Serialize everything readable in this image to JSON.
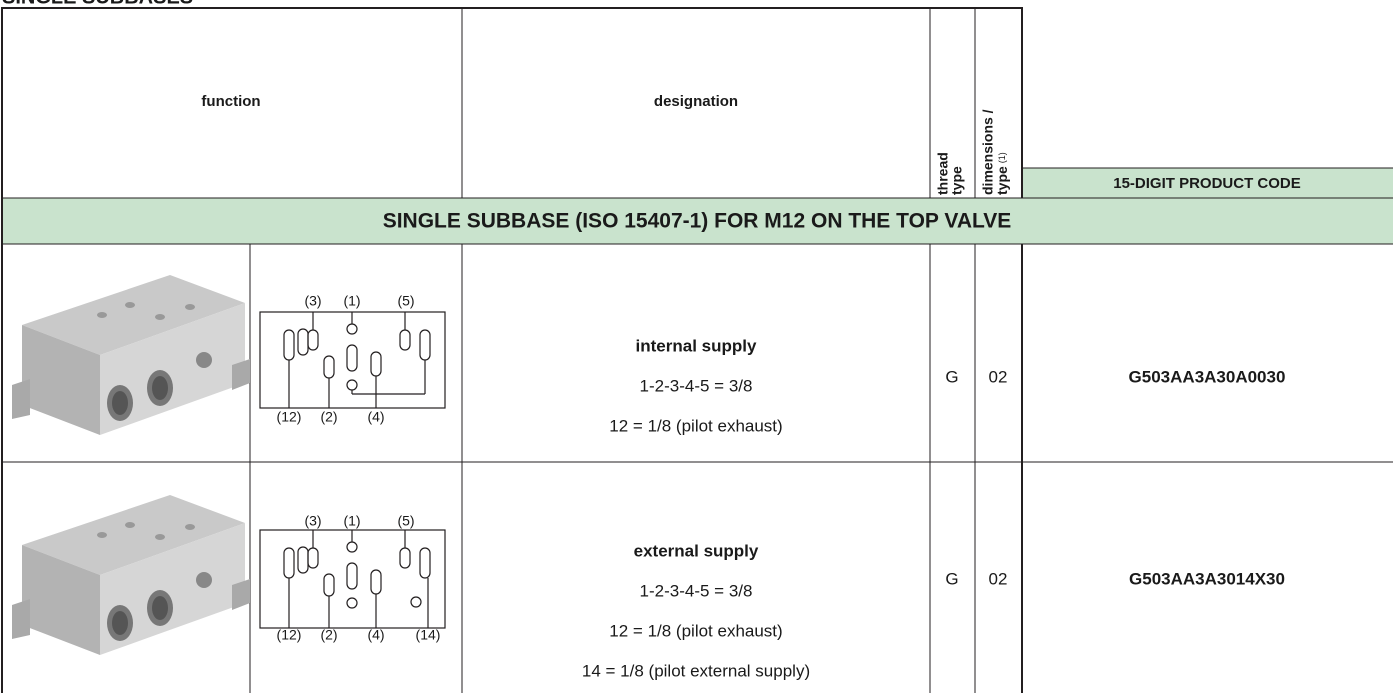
{
  "header": {
    "title": "SINGLE SUBBASES"
  },
  "table": {
    "columns": {
      "function": "function",
      "designation": "designation",
      "thread_type": [
        "thread",
        "type"
      ],
      "dimensions_type": [
        "dimensions /",
        "type"
      ],
      "dimensions_note": "(1)",
      "product_code": "15-DIGIT PRODUCT CODE"
    },
    "section": "SINGLE SUBBASE (ISO 15407-1) FOR M12 ON THE TOP VALVE",
    "rows": [
      {
        "symbol_ports": [
          "(3)",
          "(1)",
          "(5)",
          "(12)",
          "(2)",
          "(4)"
        ],
        "designation_title": "internal supply",
        "designation_lines": [
          "1-2-3-4-5 = 3/8",
          "12 = 1/8 (pilot exhaust)"
        ],
        "thread": "G",
        "dimensions": "02",
        "code": "G503AA3A30A0030"
      },
      {
        "symbol_ports": [
          "(3)",
          "(1)",
          "(5)",
          "(12)",
          "(2)",
          "(4)",
          "(14)"
        ],
        "designation_title": "external supply",
        "designation_lines": [
          "1-2-3-4-5 = 3/8",
          "12 = 1/8 (pilot exhaust)",
          "14 = 1/8 (pilot external supply)"
        ],
        "thread": "G",
        "dimensions": "02",
        "code": "G503AA3A3014X30"
      }
    ]
  }
}
